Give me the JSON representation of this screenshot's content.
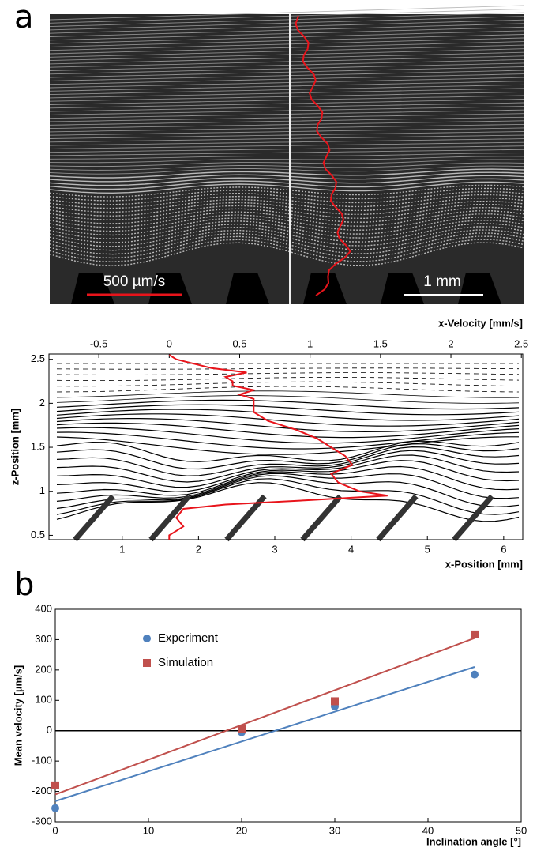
{
  "panel_labels": [
    "a",
    "b"
  ],
  "image": {
    "scale_velocity": "500 µm/s",
    "scale_length": "1 mm"
  },
  "chart_data": [
    {
      "type": "line",
      "top_xlabel": "x-Velocity [mm/s]",
      "xlabel": "x-Position [mm]",
      "ylabel": "z-Position [mm]",
      "xlim": [
        0.04,
        6.25
      ],
      "xticks": [
        1,
        2,
        3,
        4,
        5,
        6
      ],
      "top_xlim": [
        -0.854,
        2.51
      ],
      "top_xticks": [
        -0.5,
        0,
        0.5,
        1,
        1.5,
        2,
        2.5
      ],
      "ylim": [
        0.45,
        2.56
      ],
      "yticks": [
        0.5,
        1,
        1.5,
        2,
        2.5
      ],
      "profile": {
        "color": "#e8141b",
        "x": [
          0,
          0.05,
          0.3,
          0.55,
          0.4,
          0.45,
          0.45,
          0.6,
          0.5,
          0.6,
          0.6,
          0.6,
          0.7,
          0.9,
          1.05,
          1.15,
          1.25,
          1.3,
          1.15,
          1.2,
          1.35,
          1.55,
          1.0,
          0.4,
          0.1,
          0.05,
          0.1,
          0,
          0
        ],
        "y": [
          2.55,
          2.5,
          2.4,
          2.35,
          2.3,
          2.25,
          2.2,
          2.15,
          2.1,
          2.05,
          2.0,
          1.9,
          1.8,
          1.7,
          1.6,
          1.5,
          1.4,
          1.3,
          1.2,
          1.1,
          1.0,
          0.95,
          0.9,
          0.85,
          0.8,
          0.7,
          0.6,
          0.5,
          0.45
        ]
      }
    },
    {
      "type": "scatter",
      "xlabel": "Inclination angle [°]",
      "ylabel": "Mean velocity [µm/s]",
      "xlim": [
        0,
        50
      ],
      "xticks": [
        0,
        10,
        20,
        30,
        40,
        50
      ],
      "ylim": [
        -300,
        400
      ],
      "yticks": [
        -300,
        -200,
        -100,
        0,
        100,
        200,
        300,
        400
      ],
      "series": [
        {
          "name": "Experiment",
          "color": "#4f81bd",
          "marker": "circle",
          "x": [
            0,
            20,
            30,
            45
          ],
          "values": [
            -255,
            -5,
            80,
            185
          ],
          "fit_x": [
            0,
            45
          ],
          "fit_y": [
            -232,
            210
          ]
        },
        {
          "name": "Simulation",
          "color": "#c0504d",
          "marker": "square",
          "x": [
            0,
            20,
            30,
            45
          ],
          "values": [
            -180,
            5,
            97,
            317
          ],
          "fit_x": [
            0,
            45
          ],
          "fit_y": [
            -210,
            305
          ]
        }
      ]
    }
  ]
}
